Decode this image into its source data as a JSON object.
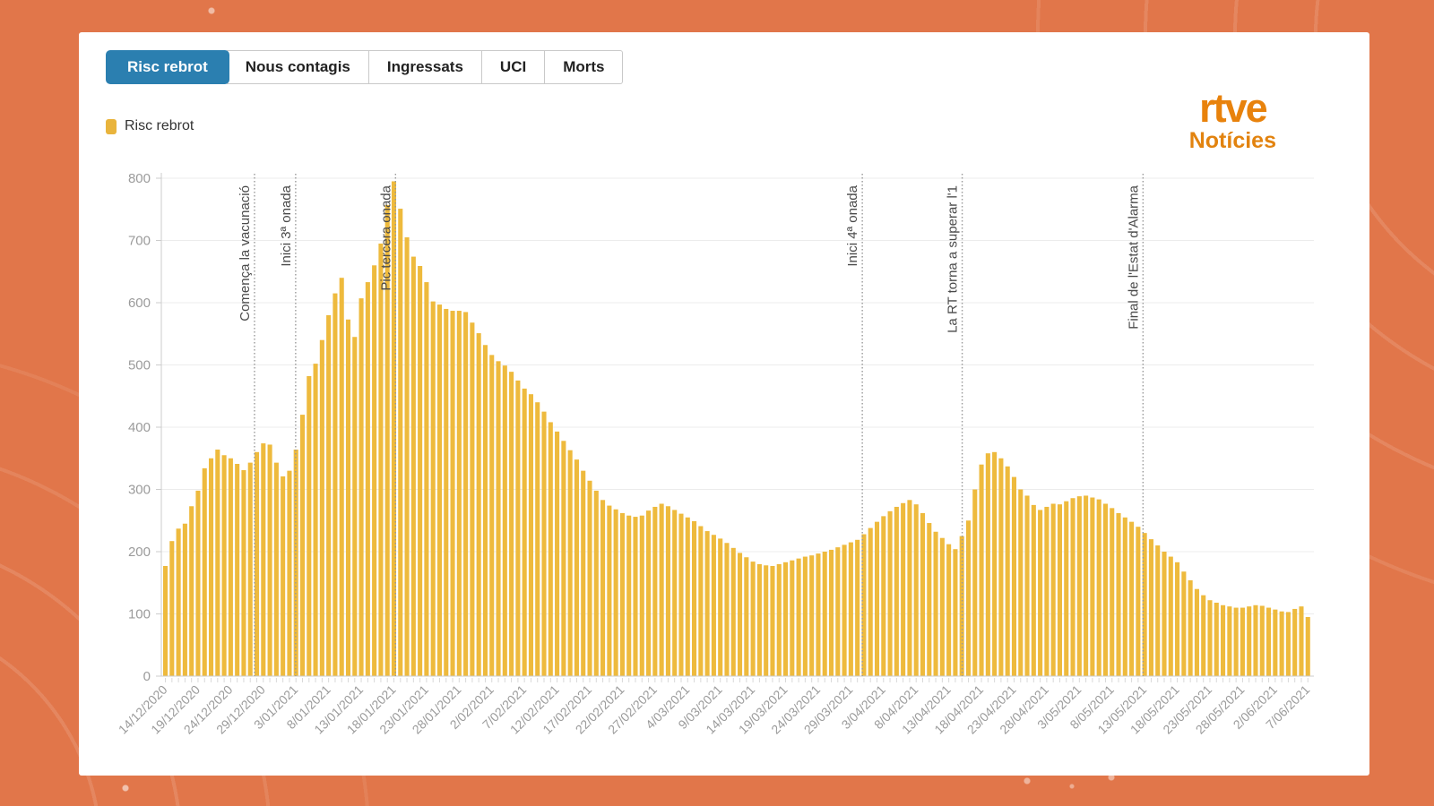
{
  "tabs": {
    "items": [
      {
        "label": "Risc rebrot",
        "active": true
      },
      {
        "label": "Nous contagis",
        "active": false
      },
      {
        "label": "Ingressats",
        "active": false
      },
      {
        "label": "UCI",
        "active": false
      },
      {
        "label": "Morts",
        "active": false
      }
    ]
  },
  "legend": {
    "label": "Risc rebrot",
    "swatch_color": "#e9b43c"
  },
  "logo": {
    "line1": "rtve",
    "line2": "Notícies"
  },
  "colors": {
    "background": "#e1764a",
    "card": "#ffffff",
    "active_tab": "#2b7fb0",
    "bar": "#eeba3d",
    "grid": "#ececec",
    "axis": "#cccccc",
    "axis_text": "#9b9b9b",
    "annotation_line": "#999999",
    "annotation_text": "#4a4a4a",
    "logo_orange": "#e8820c"
  },
  "chart_data": {
    "type": "bar",
    "title": "",
    "series_name": "Risc rebrot",
    "start_date": "14/12/2020",
    "end_date": "7/06/2021",
    "tick_every_days": 5,
    "x_tick_labels": [
      "14/12/2020",
      "19/12/2020",
      "24/12/2020",
      "29/12/2020",
      "3/01/2021",
      "8/01/2021",
      "13/01/2021",
      "18/01/2021",
      "23/01/2021",
      "28/01/2021",
      "2/02/2021",
      "7/02/2021",
      "12/02/2021",
      "17/02/2021",
      "22/02/2021",
      "27/02/2021",
      "4/03/2021",
      "9/03/2021",
      "14/03/2021",
      "19/03/2021",
      "24/03/2021",
      "29/03/2021",
      "3/04/2021",
      "8/04/2021",
      "13/04/2021",
      "18/04/2021",
      "23/04/2021",
      "28/04/2021",
      "3/05/2021",
      "8/05/2021",
      "13/05/2021",
      "18/05/2021",
      "23/05/2021",
      "28/05/2021",
      "2/06/2021",
      "7/06/2021"
    ],
    "ylim": [
      0,
      800
    ],
    "y_ticks": [
      0,
      100,
      200,
      300,
      400,
      500,
      600,
      700,
      800
    ],
    "grid": true,
    "legend_position": "top-left",
    "bar_color": "#eeba3d",
    "values": [
      177,
      217,
      237,
      245,
      273,
      298,
      334,
      350,
      364,
      355,
      350,
      341,
      331,
      343,
      360,
      374,
      372,
      343,
      321,
      330,
      364,
      420,
      482,
      502,
      540,
      580,
      615,
      640,
      573,
      545,
      607,
      633,
      660,
      695,
      757,
      795,
      751,
      705,
      674,
      659,
      633,
      602,
      597,
      590,
      587,
      587,
      585,
      568,
      551,
      532,
      516,
      506,
      499,
      489,
      475,
      462,
      453,
      440,
      425,
      408,
      393,
      378,
      363,
      348,
      330,
      314,
      298,
      283,
      274,
      268,
      262,
      258,
      256,
      258,
      266,
      272,
      277,
      273,
      267,
      261,
      255,
      249,
      241,
      233,
      227,
      221,
      214,
      206,
      198,
      191,
      184,
      180,
      178,
      177,
      180,
      183,
      186,
      189,
      192,
      194,
      197,
      200,
      203,
      207,
      211,
      215,
      219,
      228,
      238,
      248,
      257,
      265,
      272,
      278,
      283,
      276,
      262,
      246,
      232,
      222,
      212,
      204,
      225,
      250,
      300,
      340,
      358,
      360,
      350,
      337,
      320,
      300,
      290,
      275,
      267,
      272,
      277,
      276,
      281,
      286,
      289,
      290,
      287,
      284,
      277,
      270,
      262,
      255,
      248,
      240,
      230,
      220,
      210,
      200,
      192,
      183,
      168,
      154,
      140,
      130,
      122,
      118,
      114,
      112,
      110,
      110,
      112,
      114,
      113,
      110,
      107,
      104,
      103,
      108,
      112,
      95
    ],
    "annotations": [
      {
        "label": "Comença la vacunació",
        "day": 13.5,
        "date": "27/12/2020"
      },
      {
        "label": "Inici 3ª onada",
        "day": 19.8,
        "date": "2/01/2021"
      },
      {
        "label": "Pic tercera onada",
        "day": 35.1,
        "date": "18/01/2021"
      },
      {
        "label": "Inici 4ª onada",
        "day": 106.6,
        "date": "30/03/2021"
      },
      {
        "label": "La RT torna a superar l'1",
        "day": 121.9,
        "date": "14/04/2021"
      },
      {
        "label": "Final de l'Estat d'Alarma",
        "day": 149.6,
        "date": "12/05/2021"
      }
    ]
  }
}
